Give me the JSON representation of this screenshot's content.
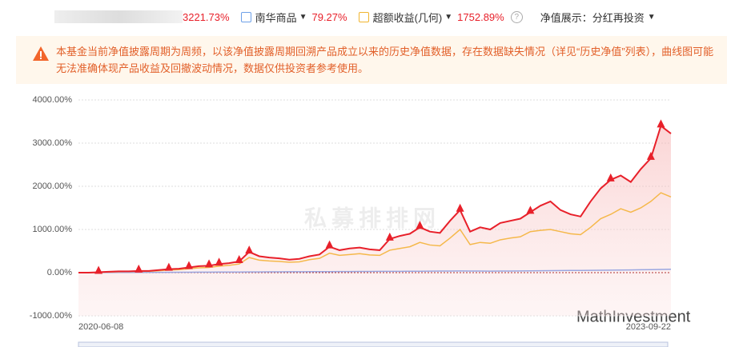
{
  "header": {
    "fund_return": "3221.73%",
    "benchmark_name": "南华商品",
    "benchmark_return": "79.27%",
    "excess_name": "超额收益(几何)",
    "excess_return": "1752.89%",
    "display_label": "净值展示：",
    "display_value": "分红再投资"
  },
  "notice": "本基金当前净值披露周期为周频，以该净值披露周期回溯产品成立以来的历史净值数据，存在数据缺失情况（详见“历史净值”列表），曲线图可能无法准确体现产品收益及回撤波动情况，数据仅供投资者参考使用。",
  "watermark": "私募排排网",
  "credit": "MathInvestment",
  "chart_data": {
    "type": "line",
    "categories": [
      "2020-06-08",
      null,
      null,
      null,
      null,
      null,
      null,
      null,
      null,
      null,
      null,
      null,
      null,
      null,
      null,
      null,
      null,
      null,
      null,
      null,
      null,
      null,
      null,
      null,
      null,
      null,
      null,
      null,
      null,
      null,
      null,
      null,
      null,
      null,
      null,
      null,
      null,
      null,
      null,
      null,
      null,
      null,
      null,
      null,
      null,
      null,
      null,
      null,
      null,
      null,
      null,
      null,
      null,
      null,
      null,
      null,
      null,
      null,
      null,
      "2023-09-22"
    ],
    "series": [
      {
        "color": "#e8202a",
        "values": [
          0,
          0,
          10,
          20,
          30,
          30,
          40,
          40,
          60,
          80,
          90,
          120,
          150,
          160,
          200,
          220,
          260,
          480,
          380,
          350,
          330,
          300,
          320,
          380,
          420,
          600,
          520,
          560,
          580,
          540,
          520,
          780,
          850,
          900,
          1050,
          950,
          920,
          1200,
          1450,
          950,
          1050,
          1000,
          1150,
          1200,
          1250,
          1400,
          1550,
          1650,
          1450,
          1350,
          1300,
          1650,
          1950,
          2150,
          2250,
          2100,
          2400,
          2650,
          3400,
          3221.73
        ]
      },
      {
        "name": "南华商品",
        "color": "#9aa6e0",
        "values": [
          0,
          1,
          2,
          3,
          4,
          5,
          5,
          6,
          7,
          8,
          9,
          10,
          11,
          12,
          13,
          14,
          15,
          16,
          17,
          18,
          19,
          20,
          21,
          22,
          23,
          24,
          25,
          26,
          27,
          28,
          29,
          30,
          31,
          32,
          33,
          34,
          36,
          38,
          40,
          38,
          36,
          35,
          36,
          38,
          40,
          42,
          44,
          46,
          48,
          50,
          52,
          54,
          56,
          58,
          60,
          62,
          66,
          70,
          75,
          79.27
        ]
      },
      {
        "name": "超额收益(几何)",
        "color": "#f5b84a",
        "values": [
          0,
          0,
          5,
          15,
          20,
          25,
          30,
          30,
          45,
          60,
          70,
          90,
          110,
          120,
          150,
          170,
          200,
          350,
          290,
          270,
          260,
          240,
          250,
          300,
          330,
          450,
          400,
          420,
          440,
          410,
          400,
          520,
          560,
          600,
          700,
          640,
          620,
          800,
          1000,
          650,
          700,
          680,
          760,
          800,
          830,
          950,
          980,
          1000,
          950,
          900,
          880,
          1050,
          1250,
          1350,
          1480,
          1400,
          1500,
          1650,
          1850,
          1752.89
        ]
      }
    ],
    "markers": [
      2,
      6,
      9,
      11,
      13,
      14,
      16,
      17,
      25,
      31,
      34,
      38,
      45,
      53,
      57,
      58
    ],
    "ylim": [
      -1000,
      4000
    ],
    "yticks": [
      {
        "value": -1000,
        "label": "-1000.00%"
      },
      {
        "value": 0,
        "label": "0.00%"
      },
      {
        "value": 1000,
        "label": "1000.00%"
      },
      {
        "value": 2000,
        "label": "2000.00%"
      },
      {
        "value": 3000,
        "label": "3000.00%"
      },
      {
        "value": 4000,
        "label": "4000.00%"
      }
    ],
    "grid": true
  }
}
